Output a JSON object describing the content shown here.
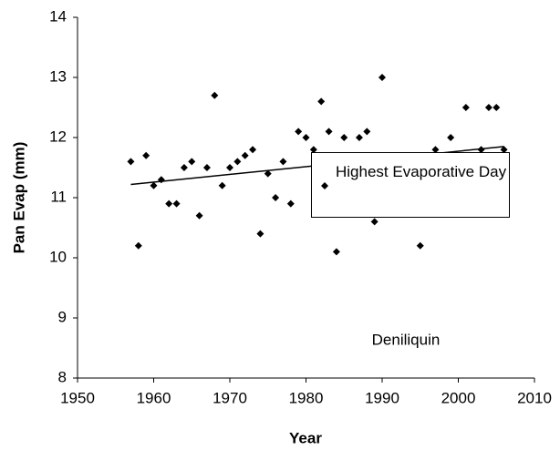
{
  "chart_data": {
    "type": "scatter",
    "xlabel": "Year",
    "ylabel": "Pan Evap (mm)",
    "annotation": "Deniliquin",
    "xlim": [
      1950,
      2010
    ],
    "xticks": [
      1950,
      1960,
      1970,
      1980,
      1990,
      2000,
      2010
    ],
    "ylim": [
      8,
      14
    ],
    "yticks": [
      8,
      9,
      10,
      11,
      12,
      13,
      14
    ],
    "series": [
      {
        "name": "Highest Evaporative Day",
        "color": "#000000",
        "x": [
          1957,
          1958,
          1959,
          1960,
          1961,
          1962,
          1963,
          1964,
          1965,
          1966,
          1967,
          1968,
          1969,
          1970,
          1971,
          1972,
          1973,
          1974,
          1975,
          1976,
          1977,
          1978,
          1979,
          1980,
          1981,
          1982,
          1983,
          1984,
          1985,
          1987,
          1988,
          1989,
          1990,
          1991,
          1995,
          1997,
          1999,
          2001,
          2003,
          2004,
          2005,
          2006
        ],
        "values": [
          11.6,
          10.2,
          11.7,
          11.2,
          11.3,
          10.9,
          10.9,
          11.5,
          11.6,
          10.7,
          11.5,
          12.7,
          11.2,
          11.5,
          11.6,
          11.7,
          11.8,
          10.4,
          11.4,
          11.0,
          11.6,
          10.9,
          12.1,
          12.0,
          11.8,
          12.6,
          12.1,
          10.1,
          12.0,
          12.0,
          12.1,
          10.6,
          13.0,
          11.6,
          10.2,
          11.8,
          12.0,
          12.5,
          11.8,
          12.5,
          12.5,
          11.8
        ]
      }
    ],
    "trendline": {
      "x": [
        1957,
        2006
      ],
      "values": [
        11.22,
        11.85
      ],
      "color": "#000000"
    }
  }
}
